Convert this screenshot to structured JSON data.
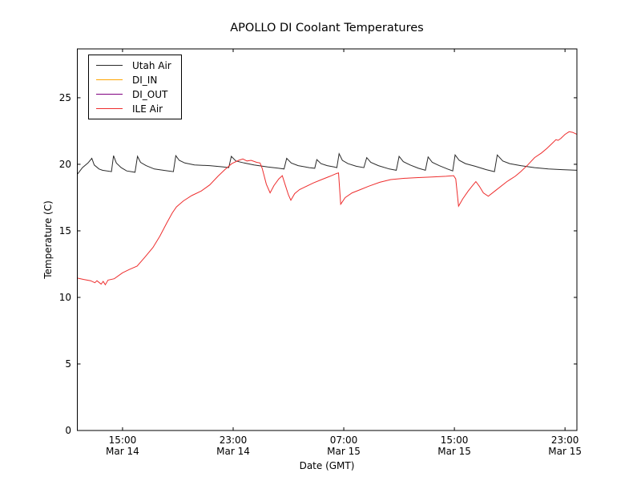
{
  "chart_data": {
    "type": "line",
    "title": "APOLLO DI Coolant Temperatures",
    "xlabel": "Date (GMT)",
    "ylabel": "Temperature (C)",
    "x_unit": "hours since Mar 14 00:00 GMT",
    "xlim": [
      11.73,
      47.86
    ],
    "ylim": [
      0,
      28.67
    ],
    "grid": false,
    "legend_position": "upper left",
    "x_ticks": [
      {
        "t": 15,
        "time": "15:00",
        "date": "Mar 14"
      },
      {
        "t": 23,
        "time": "23:00",
        "date": "Mar 14"
      },
      {
        "t": 31,
        "time": "07:00",
        "date": "Mar 15"
      },
      {
        "t": 39,
        "time": "15:00",
        "date": "Mar 15"
      },
      {
        "t": 47,
        "time": "23:00",
        "date": "Mar 15"
      }
    ],
    "y_ticks": [
      0,
      5,
      10,
      15,
      20,
      25
    ],
    "series": [
      {
        "name": "Utah Air",
        "color": "#2a2a2a",
        "points": [
          [
            11.73,
            19.25
          ],
          [
            12.1,
            19.75
          ],
          [
            12.5,
            20.1
          ],
          [
            12.78,
            20.45
          ],
          [
            12.95,
            19.95
          ],
          [
            13.3,
            19.65
          ],
          [
            13.55,
            19.55
          ],
          [
            14.2,
            19.45
          ],
          [
            14.35,
            20.65
          ],
          [
            14.55,
            20.1
          ],
          [
            14.9,
            19.75
          ],
          [
            15.3,
            19.5
          ],
          [
            15.9,
            19.4
          ],
          [
            16.08,
            20.6
          ],
          [
            16.3,
            20.15
          ],
          [
            16.7,
            19.9
          ],
          [
            17.3,
            19.65
          ],
          [
            18.3,
            19.5
          ],
          [
            18.68,
            19.45
          ],
          [
            18.85,
            20.65
          ],
          [
            19.1,
            20.3
          ],
          [
            19.5,
            20.1
          ],
          [
            20.2,
            19.95
          ],
          [
            21.3,
            19.9
          ],
          [
            22.3,
            19.8
          ],
          [
            22.68,
            19.75
          ],
          [
            22.87,
            20.6
          ],
          [
            23.2,
            20.25
          ],
          [
            23.8,
            20.1
          ],
          [
            24.5,
            19.95
          ],
          [
            25.5,
            19.8
          ],
          [
            26.3,
            19.7
          ],
          [
            26.68,
            19.65
          ],
          [
            26.87,
            20.45
          ],
          [
            27.2,
            20.1
          ],
          [
            27.7,
            19.9
          ],
          [
            28.5,
            19.75
          ],
          [
            28.9,
            19.7
          ],
          [
            29.05,
            20.35
          ],
          [
            29.35,
            20.05
          ],
          [
            29.8,
            19.9
          ],
          [
            30.3,
            19.8
          ],
          [
            30.5,
            19.75
          ],
          [
            30.66,
            20.8
          ],
          [
            30.9,
            20.3
          ],
          [
            31.3,
            20.05
          ],
          [
            31.9,
            19.85
          ],
          [
            32.45,
            19.75
          ],
          [
            32.66,
            20.5
          ],
          [
            32.95,
            20.15
          ],
          [
            33.5,
            19.9
          ],
          [
            34.3,
            19.65
          ],
          [
            34.8,
            19.55
          ],
          [
            35.0,
            20.6
          ],
          [
            35.3,
            20.2
          ],
          [
            35.8,
            19.95
          ],
          [
            36.4,
            19.7
          ],
          [
            36.9,
            19.55
          ],
          [
            37.1,
            20.55
          ],
          [
            37.4,
            20.15
          ],
          [
            37.9,
            19.9
          ],
          [
            38.5,
            19.65
          ],
          [
            38.88,
            19.5
          ],
          [
            39.05,
            20.7
          ],
          [
            39.35,
            20.3
          ],
          [
            39.8,
            20.05
          ],
          [
            40.5,
            19.85
          ],
          [
            41.3,
            19.6
          ],
          [
            41.9,
            19.45
          ],
          [
            42.1,
            20.7
          ],
          [
            42.5,
            20.25
          ],
          [
            43.0,
            20.05
          ],
          [
            43.8,
            19.9
          ],
          [
            44.8,
            19.75
          ],
          [
            45.8,
            19.65
          ],
          [
            46.8,
            19.6
          ],
          [
            47.86,
            19.55
          ]
        ]
      },
      {
        "name": "DI_IN",
        "color": "#ffa500",
        "points": [
          [
            11.73,
            0
          ],
          [
            47.86,
            0
          ]
        ]
      },
      {
        "name": "DI_OUT",
        "color": "#800080",
        "points": [
          [
            11.73,
            0
          ],
          [
            47.86,
            0
          ]
        ]
      },
      {
        "name": "ILE Air",
        "color": "#ee2e2e",
        "points": [
          [
            11.73,
            11.45
          ],
          [
            12.2,
            11.35
          ],
          [
            12.7,
            11.25
          ],
          [
            13.0,
            11.1
          ],
          [
            13.15,
            11.25
          ],
          [
            13.45,
            11.0
          ],
          [
            13.6,
            11.2
          ],
          [
            13.75,
            10.95
          ],
          [
            13.95,
            11.3
          ],
          [
            14.4,
            11.4
          ],
          [
            15.0,
            11.85
          ],
          [
            15.5,
            12.1
          ],
          [
            16.05,
            12.35
          ],
          [
            16.6,
            13.0
          ],
          [
            17.2,
            13.75
          ],
          [
            17.7,
            14.6
          ],
          [
            18.2,
            15.6
          ],
          [
            18.6,
            16.35
          ],
          [
            18.9,
            16.8
          ],
          [
            19.4,
            17.25
          ],
          [
            20.0,
            17.65
          ],
          [
            20.7,
            18.0
          ],
          [
            21.3,
            18.45
          ],
          [
            21.9,
            19.1
          ],
          [
            22.4,
            19.6
          ],
          [
            22.9,
            20.05
          ],
          [
            23.4,
            20.3
          ],
          [
            23.7,
            20.4
          ],
          [
            24.0,
            20.25
          ],
          [
            24.3,
            20.3
          ],
          [
            24.7,
            20.15
          ],
          [
            24.95,
            20.1
          ],
          [
            25.1,
            19.7
          ],
          [
            25.4,
            18.5
          ],
          [
            25.67,
            17.85
          ],
          [
            25.95,
            18.4
          ],
          [
            26.3,
            18.9
          ],
          [
            26.55,
            19.15
          ],
          [
            26.75,
            18.5
          ],
          [
            27.0,
            17.7
          ],
          [
            27.17,
            17.3
          ],
          [
            27.45,
            17.8
          ],
          [
            27.8,
            18.1
          ],
          [
            28.2,
            18.3
          ],
          [
            28.8,
            18.6
          ],
          [
            29.4,
            18.85
          ],
          [
            30.0,
            19.1
          ],
          [
            30.45,
            19.3
          ],
          [
            30.62,
            19.35
          ],
          [
            30.78,
            17.0
          ],
          [
            31.1,
            17.5
          ],
          [
            31.6,
            17.85
          ],
          [
            32.2,
            18.1
          ],
          [
            32.8,
            18.35
          ],
          [
            33.6,
            18.65
          ],
          [
            34.4,
            18.85
          ],
          [
            35.4,
            18.95
          ],
          [
            36.4,
            19.0
          ],
          [
            37.4,
            19.05
          ],
          [
            38.4,
            19.1
          ],
          [
            38.95,
            19.15
          ],
          [
            39.1,
            18.9
          ],
          [
            39.3,
            16.85
          ],
          [
            39.6,
            17.4
          ],
          [
            40.0,
            18.0
          ],
          [
            40.35,
            18.45
          ],
          [
            40.55,
            18.7
          ],
          [
            40.8,
            18.35
          ],
          [
            41.1,
            17.85
          ],
          [
            41.45,
            17.6
          ],
          [
            42.0,
            18.05
          ],
          [
            42.8,
            18.7
          ],
          [
            43.4,
            19.1
          ],
          [
            43.8,
            19.45
          ],
          [
            44.3,
            19.95
          ],
          [
            44.8,
            20.5
          ],
          [
            45.3,
            20.85
          ],
          [
            45.7,
            21.2
          ],
          [
            46.1,
            21.6
          ],
          [
            46.35,
            21.85
          ],
          [
            46.5,
            21.8
          ],
          [
            46.7,
            21.95
          ],
          [
            47.0,
            22.25
          ],
          [
            47.3,
            22.45
          ],
          [
            47.55,
            22.4
          ],
          [
            47.86,
            22.25
          ]
        ]
      }
    ]
  }
}
